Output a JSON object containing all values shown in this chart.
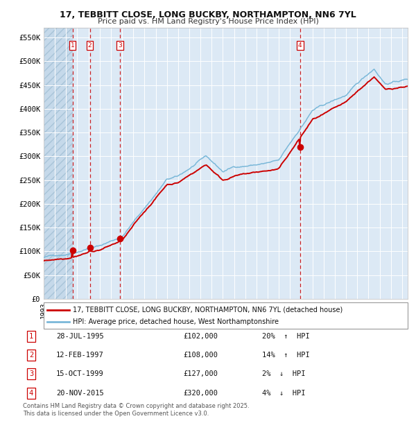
{
  "title_line1": "17, TEBBITT CLOSE, LONG BUCKBY, NORTHAMPTON, NN6 7YL",
  "title_line2": "Price paid vs. HM Land Registry's House Price Index (HPI)",
  "bg_color": "#dce9f5",
  "grid_color": "#ffffff",
  "red_line_color": "#cc0000",
  "blue_line_color": "#7ab8d9",
  "dashed_red_color": "#cc0000",
  "ylim": [
    0,
    570000
  ],
  "yticks": [
    0,
    50000,
    100000,
    150000,
    200000,
    250000,
    300000,
    350000,
    400000,
    450000,
    500000,
    550000
  ],
  "ytick_labels": [
    "£0",
    "£50K",
    "£100K",
    "£150K",
    "£200K",
    "£250K",
    "£300K",
    "£350K",
    "£400K",
    "£450K",
    "£500K",
    "£550K"
  ],
  "transactions": [
    {
      "num": 1,
      "date": "28-JUL-1995",
      "price": 102000,
      "pct": "20%",
      "dir": "↑",
      "x_year": 1995.57
    },
    {
      "num": 2,
      "date": "12-FEB-1997",
      "price": 108000,
      "pct": "14%",
      "dir": "↑",
      "x_year": 1997.12
    },
    {
      "num": 3,
      "date": "15-OCT-1999",
      "price": 127000,
      "pct": "2%",
      "dir": "↓",
      "x_year": 1999.79
    },
    {
      "num": 4,
      "date": "20-NOV-2015",
      "price": 320000,
      "pct": "4%",
      "dir": "↓",
      "x_year": 2015.89
    }
  ],
  "legend_line1": "17, TEBBITT CLOSE, LONG BUCKBY, NORTHAMPTON, NN6 7YL (detached house)",
  "legend_line2": "HPI: Average price, detached house, West Northamptonshire",
  "footnote1": "Contains HM Land Registry data © Crown copyright and database right 2025.",
  "footnote2": "This data is licensed under the Open Government Licence v3.0.",
  "xmin": 1993.0,
  "xmax": 2025.5
}
